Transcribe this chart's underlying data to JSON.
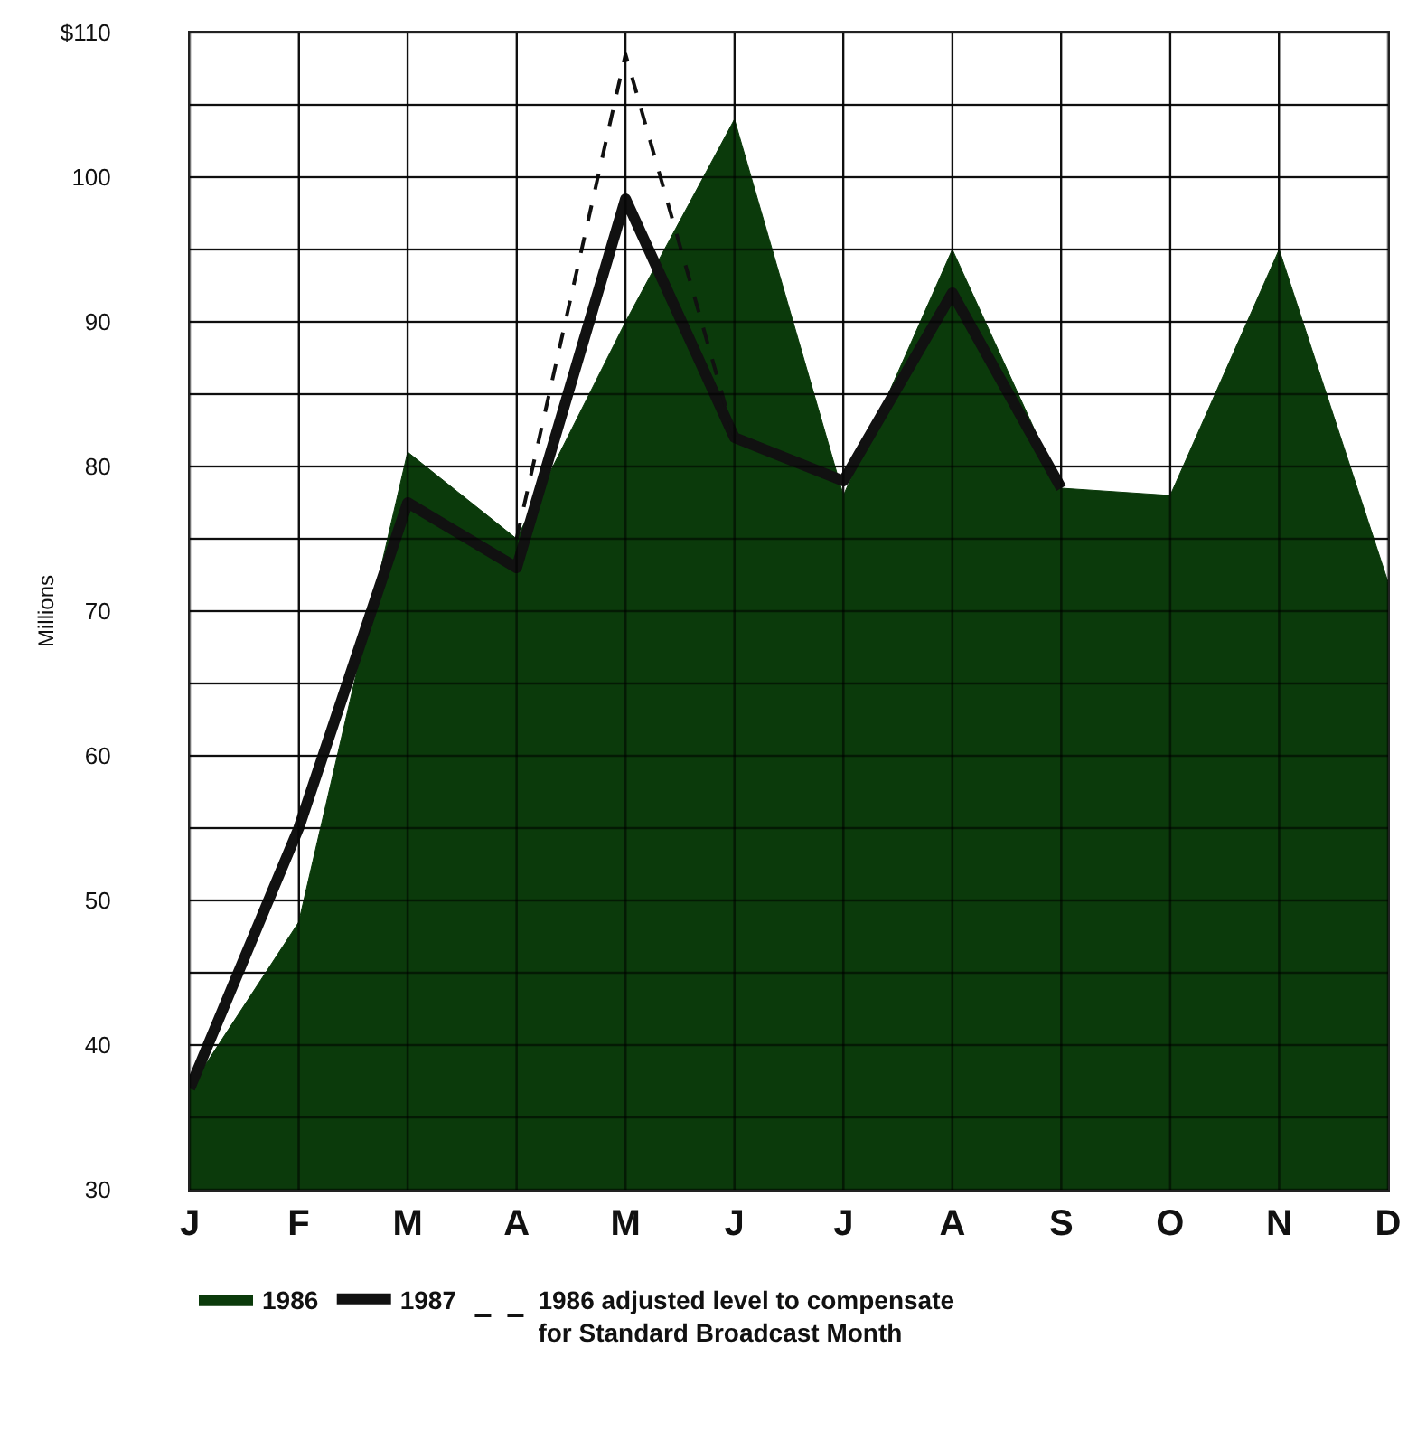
{
  "chart_data": {
    "type": "area",
    "ylabel": "Millions",
    "categories": [
      "J",
      "F",
      "M",
      "A",
      "M",
      "J",
      "J",
      "A",
      "S",
      "O",
      "N",
      "D"
    ],
    "series": [
      {
        "name": "1986",
        "color": "#0b3a0b",
        "values": [
          37,
          48.5,
          81,
          75,
          90,
          104,
          78,
          95,
          78.5,
          78,
          95,
          72
        ]
      },
      {
        "name": "1987",
        "type": "line",
        "color": "#111111",
        "line_style": "solid",
        "values": [
          37,
          55,
          77.5,
          73,
          98.5,
          82,
          79,
          92,
          78.5,
          null,
          null,
          null
        ]
      },
      {
        "name": "1986 adjusted level to compensate\nfor Standard Broadcast Month",
        "type": "line",
        "color": "#111111",
        "line_style": "dashed",
        "values": [
          null,
          null,
          null,
          75,
          108.5,
          82,
          null,
          null,
          null,
          null,
          null,
          null
        ]
      }
    ],
    "ylim": [
      30,
      110
    ],
    "yticks": [
      30,
      {
        "value": 35,
        "label": null
      },
      40,
      {
        "value": 45,
        "label": null
      },
      50,
      {
        "value": 55,
        "label": null
      },
      60,
      {
        "value": 65,
        "label": null
      },
      70,
      {
        "value": 75,
        "label": null
      },
      80,
      {
        "value": 85,
        "label": null
      },
      90,
      {
        "value": 95,
        "label": null
      },
      100,
      {
        "value": 105,
        "label": null
      },
      {
        "value": 110,
        "label": "$110"
      }
    ],
    "grid": true,
    "legend": "bottom",
    "marker": "none"
  }
}
